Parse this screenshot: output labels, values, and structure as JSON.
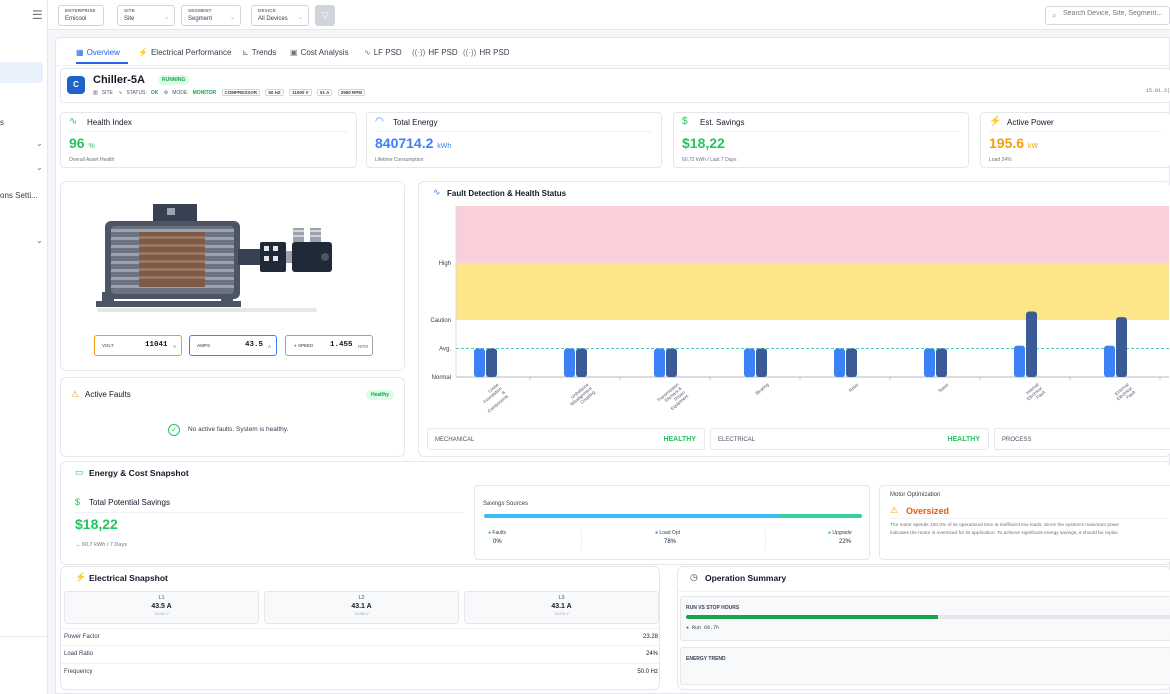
{
  "sidebar": {
    "fragments": [
      "s",
      "ons Setti..."
    ]
  },
  "filters": [
    {
      "label": "ENTERPRISE",
      "value": "Emicool"
    },
    {
      "label": "SITE",
      "value": "Site"
    },
    {
      "label": "SEGMENT",
      "value": "Segment"
    },
    {
      "label": "DEVICE",
      "value": "All Devices"
    }
  ],
  "search": {
    "placeholder": "Search Device, Site, Segment..."
  },
  "tabs": [
    {
      "label": "Overview",
      "icon": "grid-icon"
    },
    {
      "label": "Electrical Performance",
      "icon": "bolt-icon"
    },
    {
      "label": "Trends",
      "icon": "chart-icon"
    },
    {
      "label": "Cost Analysis",
      "icon": "calendar-icon"
    },
    {
      "label": "LF PSD",
      "icon": "pulse-icon"
    },
    {
      "label": "HF PSD",
      "icon": "signal-icon"
    },
    {
      "label": "HR PSD",
      "icon": "signal-icon"
    }
  ],
  "device": {
    "avatar": "C",
    "name": "Chiller-5A",
    "state": "RUNNING",
    "site": "SITE",
    "status_label": "STATUS:",
    "status": "OK",
    "mode_label": "MODE:",
    "mode": "MONITOR",
    "chips": [
      "COMPRESSOR",
      "50 HZ",
      "11000 V",
      "51 A",
      "2960 RPM"
    ],
    "date": "15.01.2("
  },
  "kpis": [
    {
      "title": "Health Index",
      "icon": "pulse-icon",
      "value": "96",
      "unit": "%",
      "sub": "Overall Asset Health",
      "color": "#22c55e"
    },
    {
      "title": "Total Energy",
      "icon": "gauge-icon",
      "value": "840714.2",
      "unit": "kWh",
      "sub": "Lifetime Consumption",
      "color": "#3b82f6"
    },
    {
      "title": "Est. Savings",
      "icon": "dollar-icon",
      "value": "$18,22",
      "unit": "",
      "sub": "60,72 kWh / Last 7 Days",
      "color": "#22c55e"
    },
    {
      "title": "Active Power",
      "icon": "bolt-icon",
      "value": "195.6",
      "unit": "kW",
      "sub": "Load 24%",
      "color": "#f59e0b"
    }
  ],
  "gauges": [
    {
      "label": "VOLT",
      "value": "11041",
      "unit": "V",
      "color": "#f59e0b"
    },
    {
      "label": "AMPS",
      "value": "43.5",
      "unit": "A",
      "color": "#3b82f6"
    },
    {
      "label": "SPEED",
      "value": "1.455",
      "unit": "RPM",
      "color": "#14b8a6"
    }
  ],
  "active_faults": {
    "title": "Active Faults",
    "badge": "Healthy",
    "message": "No active faults. System is healthy."
  },
  "fault_detection": {
    "title": "Fault Detection & Health Status"
  },
  "chart_data": {
    "type": "bar",
    "categories": [
      "Loose Foundation & Components",
      "Unbalance Misalignment Coupling",
      "Transmission Element & Driven Equipment",
      "Bearing",
      "Rotor",
      "Stator",
      "Internal Electrical Fault",
      "External Electrical Fault"
    ],
    "series": [
      {
        "values": [
          0.5,
          0.5,
          0.5,
          0.5,
          0.5,
          0.5,
          0.55,
          0.55
        ]
      },
      {
        "values": [
          0.5,
          0.5,
          0.5,
          0.5,
          0.5,
          0.5,
          1.15,
          1.05
        ]
      }
    ],
    "y_tick_labels": [
      "Normal",
      "Avg.",
      "Caution",
      "High"
    ],
    "ylim": [
      0,
      3
    ],
    "zones": [
      {
        "from": 0,
        "to": 1,
        "color": "#ffffff"
      },
      {
        "from": 1,
        "to": 2,
        "color": "#fde68a"
      },
      {
        "from": 2,
        "to": 3,
        "color": "#fbcfd9"
      }
    ],
    "avg_line": 0.5
  },
  "health_status": [
    {
      "label": "MECHANICAL",
      "value": "HEALTHY"
    },
    {
      "label": "ELECTRICAL",
      "value": "HEALTHY"
    },
    {
      "label": "PROCESS",
      "value": ""
    }
  ],
  "energy": {
    "title": "Energy & Cost Snapshot",
    "savings_title": "Total Potential Savings",
    "savings_value": "$18,22",
    "savings_sub": "→ 60.7 kWh / 7 Days",
    "sources_title": "Savings Sources",
    "sources": [
      {
        "label": "Faults",
        "value": "0%",
        "fraction": 0.0
      },
      {
        "label": "Load Opt",
        "value": "78%",
        "fraction": 0.78
      },
      {
        "label": "Upgrade",
        "value": "22%",
        "fraction": 0.22
      }
    ],
    "opt_title": "Motor Optimization",
    "opt_status": "Oversized",
    "opt_text_1": "The motor spends 100.0% of its operational time at inefficient low loads. Since the system's maximum powe",
    "opt_text_2": "indicates the motor is oversized for its application. To achieve significant energy savings, it should be replac"
  },
  "electrical": {
    "title": "Electrical Snapshot",
    "phases": [
      {
        "label": "L1",
        "amps": "43.5 A",
        "volts": "11041 V"
      },
      {
        "label": "L2",
        "amps": "43.1 A",
        "volts": "11054 V"
      },
      {
        "label": "L3",
        "amps": "43.1 A",
        "volts": "11075 V"
      }
    ],
    "rows": [
      {
        "label": "Power Factor",
        "value": "23.28"
      },
      {
        "label": "Load Ratio",
        "value": "24%"
      },
      {
        "label": "Frequency",
        "value": "50.0 Hz"
      }
    ]
  },
  "operation": {
    "title": "Operation Summary",
    "run_title": "RUN VS STOP HOURS",
    "run_label": "Run 69.7h",
    "run_fraction": 0.52,
    "trend_title": "ENERGY TREND"
  }
}
